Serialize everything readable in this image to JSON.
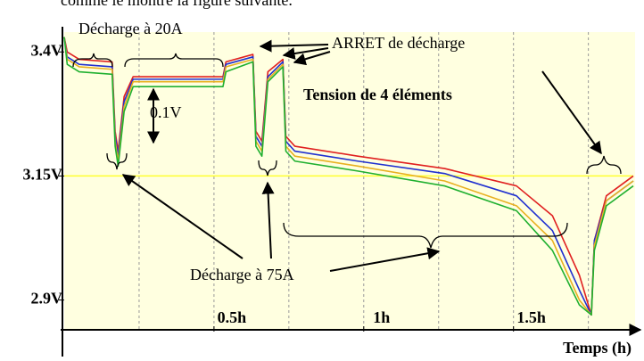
{
  "chart_data": {
    "type": "line",
    "caption": "comme le montre la figure suivante.",
    "annotations": [
      "Décharge à 20A",
      "ARRET de décharge",
      "Tension de 4 éléments",
      "0.1V",
      "Décharge à 75A"
    ],
    "xlabel": "Temps (h)",
    "x": [
      0,
      0.01,
      0.05,
      0.16,
      0.17,
      0.18,
      0.2,
      0.23,
      0.38,
      0.53,
      0.54,
      0.63,
      0.64,
      0.66,
      0.68,
      0.73,
      0.74,
      0.77,
      0.98,
      1.27,
      1.51,
      1.63,
      1.72,
      1.76,
      1.77,
      1.81,
      1.9
    ],
    "series": [
      {
        "color": "#e02020",
        "values": [
          3.43,
          3.4,
          3.385,
          3.38,
          3.24,
          3.2,
          3.31,
          3.35,
          3.35,
          3.35,
          3.38,
          3.395,
          3.24,
          3.22,
          3.36,
          3.385,
          3.23,
          3.21,
          3.19,
          3.165,
          3.13,
          3.07,
          2.95,
          2.87,
          3.02,
          3.11,
          3.15
        ]
      },
      {
        "color": "#2030d0",
        "values": [
          3.43,
          3.39,
          3.375,
          3.37,
          3.23,
          3.19,
          3.3,
          3.345,
          3.345,
          3.345,
          3.375,
          3.39,
          3.23,
          3.21,
          3.35,
          3.38,
          3.22,
          3.2,
          3.18,
          3.155,
          3.11,
          3.04,
          2.92,
          2.87,
          3.02,
          3.1,
          3.14
        ]
      },
      {
        "color": "#e8b020",
        "values": [
          3.43,
          3.385,
          3.37,
          3.365,
          3.22,
          3.18,
          3.29,
          3.34,
          3.34,
          3.34,
          3.37,
          3.385,
          3.22,
          3.2,
          3.345,
          3.375,
          3.21,
          3.19,
          3.17,
          3.14,
          3.09,
          3.02,
          2.9,
          2.87,
          3.01,
          3.1,
          3.14
        ]
      },
      {
        "color": "#20b030",
        "values": [
          3.43,
          3.375,
          3.36,
          3.355,
          3.21,
          3.17,
          3.28,
          3.33,
          3.33,
          3.33,
          3.36,
          3.38,
          3.21,
          3.19,
          3.34,
          3.37,
          3.2,
          3.18,
          3.16,
          3.13,
          3.08,
          3.0,
          2.89,
          2.87,
          3.0,
          3.09,
          3.13
        ]
      }
    ],
    "xlim": [
      0,
      1.9
    ],
    "ylim": [
      2.84,
      3.44
    ],
    "xticks": [
      {
        "value": 0.5,
        "label": "0.5h"
      },
      {
        "value": 1,
        "label": "1h"
      },
      {
        "value": 1.5,
        "label": "1.5h"
      }
    ],
    "x_grid": [
      0.25,
      0.5,
      0.75,
      1,
      1.25,
      1.5,
      1.75
    ],
    "yticks": [
      {
        "value": 2.9,
        "label": "2.9V"
      },
      {
        "value": 3.15,
        "label": "3.15V"
      },
      {
        "value": 3.4,
        "label": "3.4V"
      }
    ],
    "reference_line": {
      "value": 3.15,
      "color": "#ffff30"
    },
    "background": "#ffffe0"
  }
}
